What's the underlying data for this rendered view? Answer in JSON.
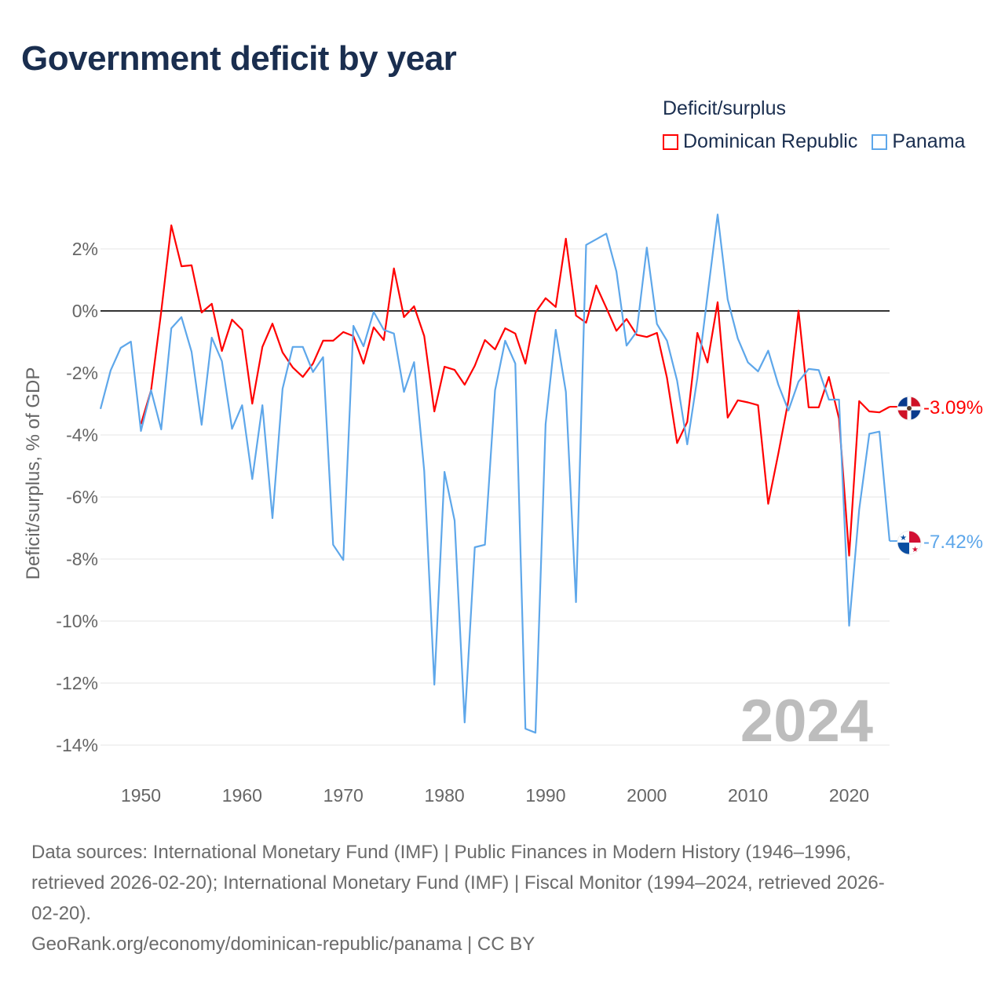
{
  "title": "Government deficit by year",
  "legend": {
    "title": "Deficit/surplus",
    "items": [
      {
        "label": "Dominican Republic",
        "color": "#ff0000"
      },
      {
        "label": "Panama",
        "color": "#5ea7ea"
      }
    ]
  },
  "chart_data": {
    "type": "line",
    "title": "Government deficit by year",
    "xlabel": "",
    "ylabel": "Deficit/surplus, % of GDP",
    "xlim": [
      1946,
      2024
    ],
    "ylim": [
      -14,
      3.2
    ],
    "x_ticks": [
      1950,
      1960,
      1970,
      1980,
      1990,
      2000,
      2010,
      2020
    ],
    "x_tick_labels": [
      "1950",
      "1960",
      "1970",
      "1980",
      "1990",
      "2000",
      "2010",
      "2020"
    ],
    "y_ticks": [
      2,
      0,
      -2,
      -4,
      -6,
      -8,
      -10,
      -12,
      -14
    ],
    "y_tick_labels": [
      "2%",
      "0%",
      "-2%",
      "-4%",
      "-6%",
      "-8%",
      "-10%",
      "-12%",
      "-14%"
    ],
    "grid": true,
    "legend_position": "top-right",
    "current_year_label": "2024",
    "series": [
      {
        "name": "Dominican Republic",
        "color": "#ff0000",
        "start_year": 1950,
        "end_label": "-3.09%",
        "flag": "dominican-republic",
        "values": [
          -3.65,
          -2.56,
          -0.03,
          2.76,
          1.44,
          1.47,
          -0.05,
          0.23,
          -1.29,
          -0.28,
          -0.61,
          -2.99,
          -1.16,
          -0.41,
          -1.34,
          -1.82,
          -2.13,
          -1.7,
          -0.96,
          -0.96,
          -0.68,
          -0.81,
          -1.7,
          -0.53,
          -0.94,
          1.37,
          -0.2,
          0.15,
          -0.81,
          -3.24,
          -1.8,
          -1.9,
          -2.38,
          -1.77,
          -0.94,
          -1.24,
          -0.56,
          -0.73,
          -1.7,
          -0.05,
          0.41,
          0.13,
          2.33,
          -0.15,
          -0.38,
          0.82,
          0.1,
          -0.64,
          -0.26,
          -0.77,
          -0.84,
          -0.71,
          -2.16,
          -4.26,
          -3.58,
          -0.71,
          -1.66,
          0.28,
          -3.44,
          -2.88,
          -2.95,
          -3.04,
          -6.22,
          -4.6,
          -2.88,
          0.01,
          -3.11,
          -3.11,
          -2.13,
          -3.47,
          -7.89,
          -2.91,
          -3.24,
          -3.27,
          -3.09
        ]
      },
      {
        "name": "Panama",
        "color": "#5ea7ea",
        "start_year": 1946,
        "end_label": "-7.42%",
        "flag": "panama",
        "values": [
          -3.16,
          -1.92,
          -1.19,
          -0.99,
          -3.87,
          -2.56,
          -3.82,
          -0.56,
          -0.2,
          -1.32,
          -3.67,
          -0.86,
          -1.62,
          -3.8,
          -3.04,
          -5.42,
          -3.04,
          -6.68,
          -2.51,
          -1.16,
          -1.16,
          -1.97,
          -1.49,
          -7.54,
          -8.03,
          -0.48,
          -1.14,
          -0.03,
          -0.61,
          -0.73,
          -2.61,
          -1.65,
          -5.16,
          -12.05,
          -5.19,
          -6.76,
          -13.27,
          -7.62,
          -7.54,
          -2.56,
          -0.96,
          -1.7,
          -13.47,
          -13.6,
          -3.65,
          -0.61,
          -2.61,
          -9.39,
          2.13,
          2.31,
          2.49,
          1.27,
          -1.12,
          -0.67,
          2.04,
          -0.42,
          -0.96,
          -2.25,
          -4.3,
          -2.16,
          0.5,
          3.11,
          0.37,
          -0.89,
          -1.66,
          -1.95,
          -1.28,
          -2.38,
          -3.21,
          -2.28,
          -1.87,
          -1.91,
          -2.86,
          -2.86,
          -10.15,
          -6.4,
          -3.96,
          -3.89,
          -7.42
        ]
      }
    ]
  },
  "footer": {
    "source_lines": [
      "Data sources: International Monetary Fund (IMF) | Public Finances in Modern History (1946–1996,",
      "retrieved 2026-02-20); International Monetary Fund (IMF) | Fiscal Monitor (1994–2024, retrieved 2026-",
      "02-20)."
    ],
    "credit": "GeoRank.org/economy/dominican-republic/panama | CC BY"
  }
}
